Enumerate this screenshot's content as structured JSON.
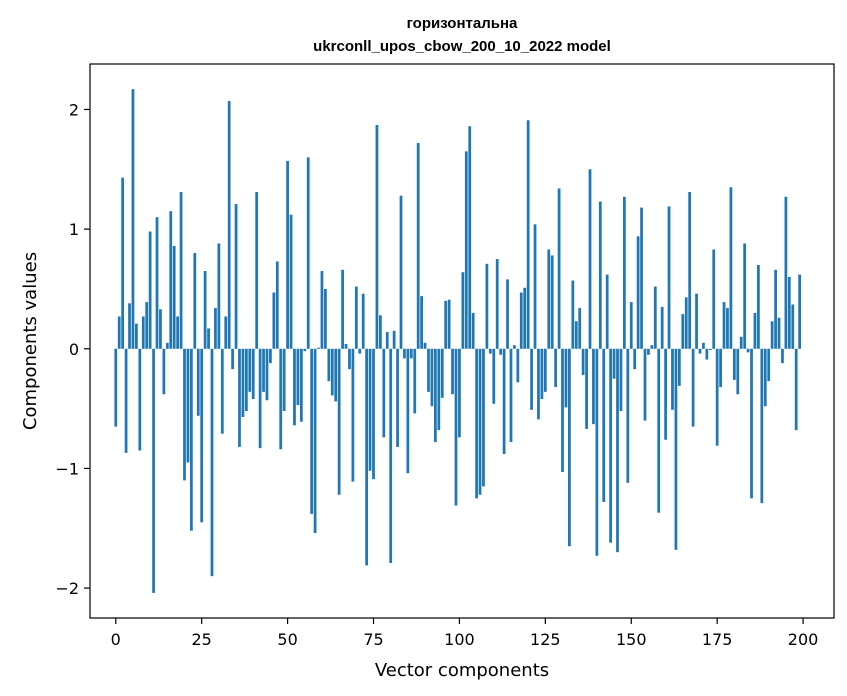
{
  "chart_data": {
    "type": "bar",
    "title": "горизонтальна",
    "subtitle": "ukrconll_upos_cbow_200_10_2022 model",
    "xlabel": "Vector components",
    "ylabel": "Components values",
    "xlim": [
      -7.5,
      209
    ],
    "ylim": [
      -2.25,
      2.38
    ],
    "xticks": [
      0,
      25,
      50,
      75,
      100,
      125,
      150,
      175,
      200
    ],
    "yticks": [
      -2,
      -1,
      0,
      1,
      2
    ],
    "xtick_labels": [
      "0",
      "25",
      "50",
      "75",
      "100",
      "125",
      "150",
      "175",
      "200"
    ],
    "ytick_labels": [
      "−2",
      "−1",
      "0",
      "1",
      "2"
    ],
    "bar_color": "#1f77b4",
    "grid": false,
    "x": [
      0,
      1,
      2,
      3,
      4,
      5,
      6,
      7,
      8,
      9,
      10,
      11,
      12,
      13,
      14,
      15,
      16,
      17,
      18,
      19,
      20,
      21,
      22,
      23,
      24,
      25,
      26,
      27,
      28,
      29,
      30,
      31,
      32,
      33,
      34,
      35,
      36,
      37,
      38,
      39,
      40,
      41,
      42,
      43,
      44,
      45,
      46,
      47,
      48,
      49,
      50,
      51,
      52,
      53,
      54,
      55,
      56,
      57,
      58,
      59,
      60,
      61,
      62,
      63,
      64,
      65,
      66,
      67,
      68,
      69,
      70,
      71,
      72,
      73,
      74,
      75,
      76,
      77,
      78,
      79,
      80,
      81,
      82,
      83,
      84,
      85,
      86,
      87,
      88,
      89,
      90,
      91,
      92,
      93,
      94,
      95,
      96,
      97,
      98,
      99,
      100,
      101,
      102,
      103,
      104,
      105,
      106,
      107,
      108,
      109,
      110,
      111,
      112,
      113,
      114,
      115,
      116,
      117,
      118,
      119,
      120,
      121,
      122,
      123,
      124,
      125,
      126,
      127,
      128,
      129,
      130,
      131,
      132,
      133,
      134,
      135,
      136,
      137,
      138,
      139,
      140,
      141,
      142,
      143,
      144,
      145,
      146,
      147,
      148,
      149,
      150,
      151,
      152,
      153,
      154,
      155,
      156,
      157,
      158,
      159,
      160,
      161,
      162,
      163,
      164,
      165,
      166,
      167,
      168,
      169,
      170,
      171,
      172,
      173,
      174,
      175,
      176,
      177,
      178,
      179,
      180,
      181,
      182,
      183,
      184,
      185,
      186,
      187,
      188,
      189,
      190,
      191,
      192,
      193,
      194,
      195,
      196,
      197,
      198,
      199
    ],
    "values": [
      -0.65,
      0.27,
      1.43,
      -0.87,
      0.38,
      2.17,
      0.21,
      -0.85,
      0.27,
      0.39,
      0.98,
      -2.04,
      1.1,
      0.33,
      -0.38,
      0.05,
      1.15,
      0.86,
      0.27,
      1.31,
      -1.1,
      -0.95,
      -1.52,
      0.8,
      -0.56,
      -1.45,
      0.65,
      0.17,
      -1.9,
      0.34,
      0.88,
      -0.71,
      0.27,
      2.07,
      -0.17,
      1.21,
      -0.82,
      -0.57,
      -0.52,
      -0.36,
      -0.42,
      1.31,
      -0.83,
      -0.36,
      -0.43,
      -0.12,
      0.47,
      0.73,
      -0.84,
      -0.52,
      1.57,
      1.12,
      -0.64,
      -0.47,
      -0.61,
      -0.02,
      1.6,
      -1.38,
      -1.54,
      0.01,
      0.65,
      0.5,
      -0.27,
      -0.39,
      -0.44,
      -1.22,
      0.66,
      0.04,
      -0.17,
      -1.11,
      0.52,
      -0.04,
      0.46,
      -1.81,
      -1.02,
      -1.09,
      1.87,
      0.28,
      -0.74,
      0.14,
      -1.79,
      0.15,
      -0.82,
      1.28,
      -0.08,
      -1.04,
      -0.08,
      -0.54,
      1.72,
      0.44,
      0.05,
      -0.36,
      -0.48,
      -0.78,
      -0.68,
      -0.41,
      0.4,
      0.41,
      -0.38,
      -1.31,
      -0.74,
      0.64,
      1.65,
      1.86,
      0.3,
      -1.25,
      -1.22,
      -1.15,
      0.71,
      -0.04,
      -0.46,
      0.75,
      -0.05,
      -0.88,
      0.58,
      -0.78,
      0.03,
      -0.28,
      0.47,
      0.51,
      1.91,
      -0.51,
      1.04,
      -0.59,
      -0.42,
      -0.36,
      0.83,
      0.78,
      -0.32,
      1.34,
      -1.03,
      -0.49,
      -1.65,
      0.57,
      0.23,
      0.34,
      -0.22,
      -0.67,
      1.5,
      -0.63,
      -1.73,
      1.23,
      -1.28,
      0.62,
      -1.62,
      -0.25,
      -1.7,
      -0.52,
      1.27,
      -1.12,
      0.39,
      -0.17,
      0.94,
      1.18,
      -0.6,
      -0.05,
      0.03,
      0.52,
      -1.37,
      0.35,
      -0.76,
      1.19,
      -0.51,
      -1.68,
      -0.31,
      0.29,
      0.43,
      1.31,
      -0.65,
      0.46,
      -0.04,
      0.05,
      -0.09,
      -0.01,
      0.83,
      -0.81,
      -0.32,
      0.39,
      0.34,
      1.35,
      -0.26,
      -0.38,
      0.1,
      0.88,
      -0.03,
      -1.25,
      0.3,
      0.7,
      -1.29,
      -0.48,
      -0.27,
      0.23,
      0.66,
      0.26,
      -0.12,
      1.27,
      0.6,
      0.37,
      -0.68,
      0.62
    ]
  }
}
